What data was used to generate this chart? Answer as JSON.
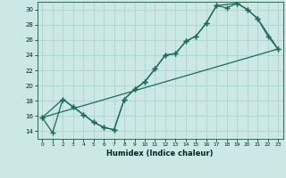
{
  "xlabel": "Humidex (Indice chaleur)",
  "background_color": "#cce8e4",
  "grid_color": "#b0d8d0",
  "line_color": "#1a6b5a",
  "xlim": [
    -0.5,
    23.5
  ],
  "ylim": [
    13.0,
    31.0
  ],
  "xticks": [
    0,
    1,
    2,
    3,
    4,
    5,
    6,
    7,
    8,
    9,
    10,
    11,
    12,
    13,
    14,
    15,
    16,
    17,
    18,
    19,
    20,
    21,
    22,
    23
  ],
  "yticks": [
    14,
    16,
    18,
    20,
    22,
    24,
    26,
    28,
    30
  ],
  "line1_x": [
    0,
    1,
    2,
    3,
    4,
    5,
    6,
    7,
    8,
    9,
    10,
    11,
    12,
    13,
    14,
    15,
    16,
    17,
    18,
    19,
    20,
    21,
    22,
    23
  ],
  "line1_y": [
    15.8,
    13.8,
    18.2,
    17.2,
    16.2,
    15.2,
    14.5,
    14.2,
    18.2,
    19.5,
    20.5,
    22.2,
    24.0,
    24.2,
    25.8,
    26.5,
    28.2,
    30.5,
    30.2,
    30.8,
    30.0,
    28.8,
    26.5,
    24.8
  ],
  "line2_x": [
    0,
    2,
    3,
    4,
    5,
    6,
    7,
    8,
    9,
    10,
    11,
    12,
    13,
    14,
    15,
    16,
    17,
    19,
    20,
    21,
    23
  ],
  "line2_y": [
    15.8,
    18.2,
    17.2,
    16.2,
    15.2,
    14.5,
    14.2,
    18.2,
    19.5,
    20.5,
    22.2,
    24.0,
    24.2,
    25.8,
    26.5,
    28.2,
    30.5,
    30.8,
    30.0,
    28.8,
    24.8
  ],
  "line3_x": [
    0,
    23
  ],
  "line3_y": [
    15.8,
    24.8
  ]
}
